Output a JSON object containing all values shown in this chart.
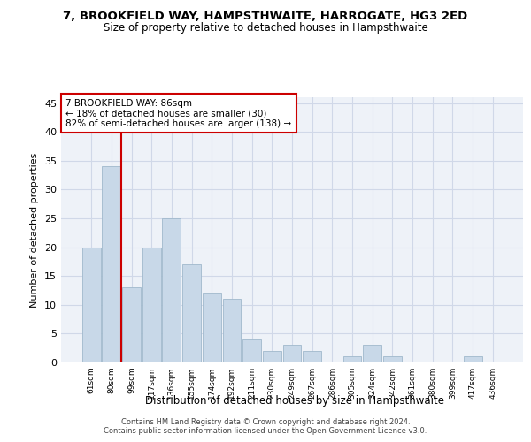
{
  "title1": "7, BROOKFIELD WAY, HAMPSTHWAITE, HARROGATE, HG3 2ED",
  "title2": "Size of property relative to detached houses in Hampsthwaite",
  "xlabel": "Distribution of detached houses by size in Hampsthwaite",
  "ylabel": "Number of detached properties",
  "categories": [
    "61sqm",
    "80sqm",
    "99sqm",
    "117sqm",
    "136sqm",
    "155sqm",
    "174sqm",
    "192sqm",
    "211sqm",
    "230sqm",
    "249sqm",
    "267sqm",
    "286sqm",
    "305sqm",
    "324sqm",
    "342sqm",
    "361sqm",
    "380sqm",
    "399sqm",
    "417sqm",
    "436sqm"
  ],
  "values": [
    20,
    34,
    13,
    20,
    25,
    17,
    12,
    11,
    4,
    2,
    3,
    2,
    0,
    1,
    3,
    1,
    0,
    0,
    0,
    1,
    0
  ],
  "bar_color": "#c8d8e8",
  "bar_edge_color": "#a0b8cc",
  "vline_x_index": 1.5,
  "vline_color": "#cc0000",
  "annotation_text": "7 BROOKFIELD WAY: 86sqm\n← 18% of detached houses are smaller (30)\n82% of semi-detached houses are larger (138) →",
  "annotation_box_color": "#ffffff",
  "annotation_box_edge": "#cc0000",
  "ylim": [
    0,
    46
  ],
  "yticks": [
    0,
    5,
    10,
    15,
    20,
    25,
    30,
    35,
    40,
    45
  ],
  "grid_color": "#d0d8e8",
  "bg_color": "#eef2f8",
  "footer1": "Contains HM Land Registry data © Crown copyright and database right 2024.",
  "footer2": "Contains public sector information licensed under the Open Government Licence v3.0."
}
